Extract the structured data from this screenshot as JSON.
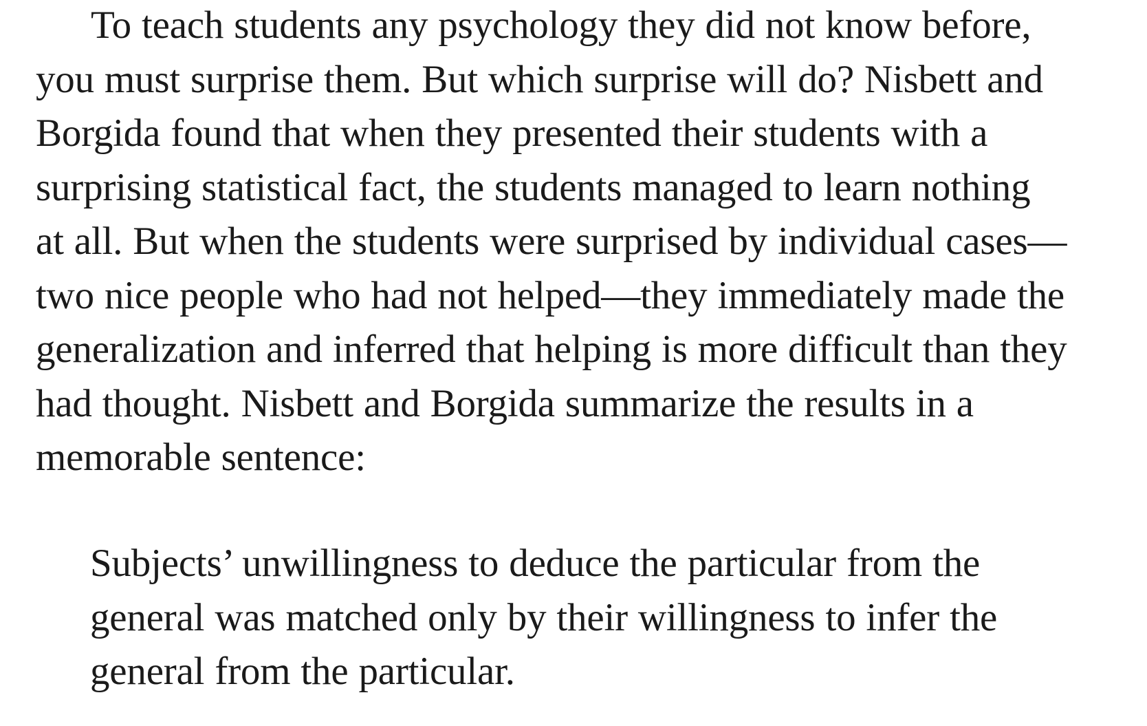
{
  "document": {
    "paragraph_lines": [
      "To teach students any psychology they did not know before,",
      "you must surprise them. But which surprise will do? Nisbett and",
      "Borgida found that when they presented their students with a",
      "surprising statistical fact, the students managed to learn nothing",
      "at all. But when the students were surprised by individual cases—",
      "two nice people who had not helped—they immediately made the",
      "generalization and inferred that helping is more difficult than they",
      "had thought. Nisbett and Borgida summarize the results in a",
      "memorable sentence:"
    ],
    "quote_lines": [
      "Subjects’ unwillingness to deduce the particular from the",
      "general was matched only by their willingness to infer the",
      "general from the particular."
    ]
  }
}
